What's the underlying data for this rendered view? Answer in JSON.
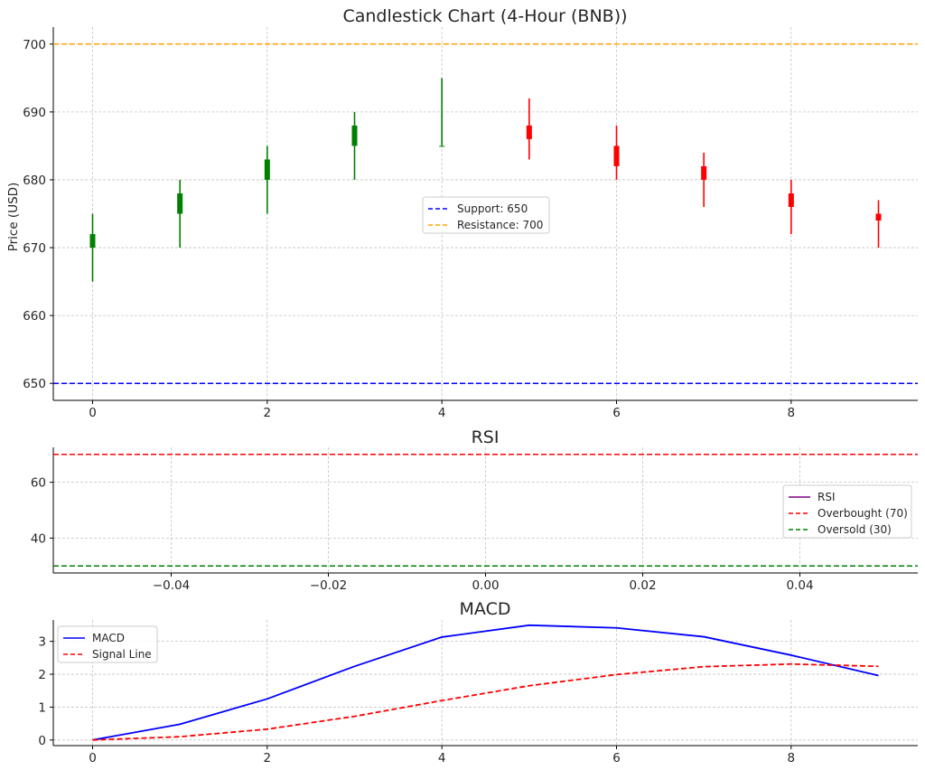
{
  "chart_data": [
    {
      "type": "candlestick",
      "title": "Candlestick Chart (4-Hour (BNB))",
      "ylabel": "Price (USD)",
      "xlim": [
        -0.45,
        9.45
      ],
      "ylim": [
        647.5,
        702.5
      ],
      "xticks": [
        0,
        2,
        4,
        6,
        8
      ],
      "yticks": [
        650,
        660,
        670,
        680,
        690,
        700
      ],
      "x": [
        0,
        1,
        2,
        3,
        4,
        5,
        6,
        7,
        8,
        9
      ],
      "open": [
        670,
        675,
        680,
        685,
        685,
        688,
        685,
        682,
        678,
        675
      ],
      "close": [
        672,
        678,
        683,
        688,
        685,
        686,
        682,
        680,
        676,
        674
      ],
      "high": [
        675,
        680,
        685,
        690,
        695,
        692,
        688,
        684,
        680,
        677
      ],
      "low": [
        665,
        670,
        675,
        680,
        685,
        683,
        680,
        676,
        672,
        670
      ],
      "up_color": "#008000",
      "down_color": "#ff0000",
      "hlines": [
        {
          "name": "Support: 650",
          "y": 650,
          "color": "#0000ff"
        },
        {
          "name": "Resistance: 700",
          "y": 700,
          "color": "#ffa500"
        }
      ],
      "legend": "center",
      "grid": true
    },
    {
      "type": "line",
      "title": "RSI",
      "xlim": [
        -0.055,
        0.055
      ],
      "ylim": [
        27.5,
        72.5
      ],
      "xticks": [
        -0.04,
        -0.02,
        0.0,
        0.02,
        0.04
      ],
      "xtick_labels": [
        "−0.04",
        "−0.02",
        "0.00",
        "0.02",
        "0.04"
      ],
      "yticks": [
        40,
        60
      ],
      "series": [
        {
          "name": "RSI",
          "values": [],
          "color": "#800080"
        }
      ],
      "hlines": [
        {
          "name": "Overbought (70)",
          "y": 70,
          "color": "#ff0000"
        },
        {
          "name": "Oversold (30)",
          "y": 30,
          "color": "#008000"
        }
      ],
      "legend": "center-right",
      "grid": true
    },
    {
      "type": "line",
      "title": "MACD",
      "xlim": [
        -0.45,
        9.45
      ],
      "ylim": [
        -0.17,
        3.65
      ],
      "xticks": [
        0,
        2,
        4,
        6,
        8
      ],
      "yticks": [
        0,
        1,
        2,
        3
      ],
      "x": [
        0,
        1,
        2,
        3,
        4,
        5,
        6,
        7,
        8,
        9
      ],
      "series": [
        {
          "name": "MACD",
          "color": "#0000ff",
          "style": "solid",
          "values": [
            0,
            0.48,
            1.25,
            2.24,
            3.13,
            3.49,
            3.41,
            3.14,
            2.58,
            1.96
          ]
        },
        {
          "name": "Signal Line",
          "color": "#ff0000",
          "style": "dashed",
          "values": [
            0,
            0.1,
            0.33,
            0.72,
            1.2,
            1.65,
            1.99,
            2.23,
            2.31,
            2.24
          ]
        }
      ],
      "legend": "top-left",
      "grid": true
    }
  ]
}
